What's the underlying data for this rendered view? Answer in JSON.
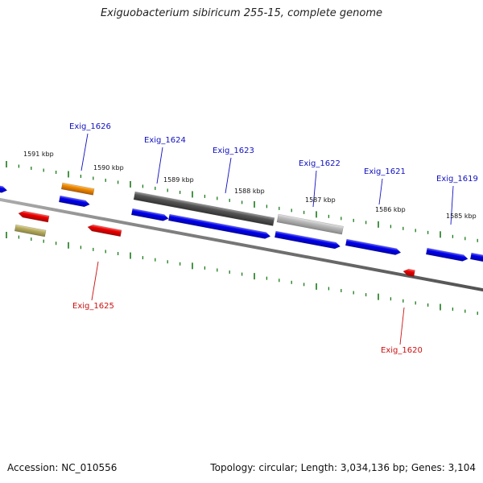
{
  "title": "Exiguobacterium sibiricum 255-15, complete genome",
  "footer": {
    "accession": "Accession: NC_010556",
    "summary": "Topology: circular; Length: 3,034,136 bp; Genes: 3,104"
  },
  "colors": {
    "forward_gene": "#0000ee",
    "reverse_gene": "#ee0000",
    "highlight_dark": "#555555",
    "highlight_light": "#bbbbbb",
    "orange_gene": "#f08a00",
    "olive_gene": "#b8ae62",
    "tick": "#1a7a1a",
    "label_forward": "#1010c0",
    "label_reverse": "#cc1010"
  },
  "ruler_labels": [
    {
      "text": "1591 kbp"
    },
    {
      "text": "1590 kbp"
    },
    {
      "text": "1589 kbp"
    },
    {
      "text": "1588 kbp"
    },
    {
      "text": "1587 kbp"
    },
    {
      "text": "1586 kbp"
    },
    {
      "text": "1585 kbp"
    }
  ],
  "gene_labels": [
    {
      "text": "Exig_1626",
      "strand": "forward"
    },
    {
      "text": "Exig_1624",
      "strand": "forward"
    },
    {
      "text": "Exig_1623",
      "strand": "forward"
    },
    {
      "text": "Exig_1622",
      "strand": "forward"
    },
    {
      "text": "Exig_1621",
      "strand": "forward"
    },
    {
      "text": "Exig_1619",
      "strand": "forward"
    },
    {
      "text": "Exig_1625",
      "strand": "reverse"
    },
    {
      "text": "Exig_1620",
      "strand": "reverse"
    }
  ]
}
